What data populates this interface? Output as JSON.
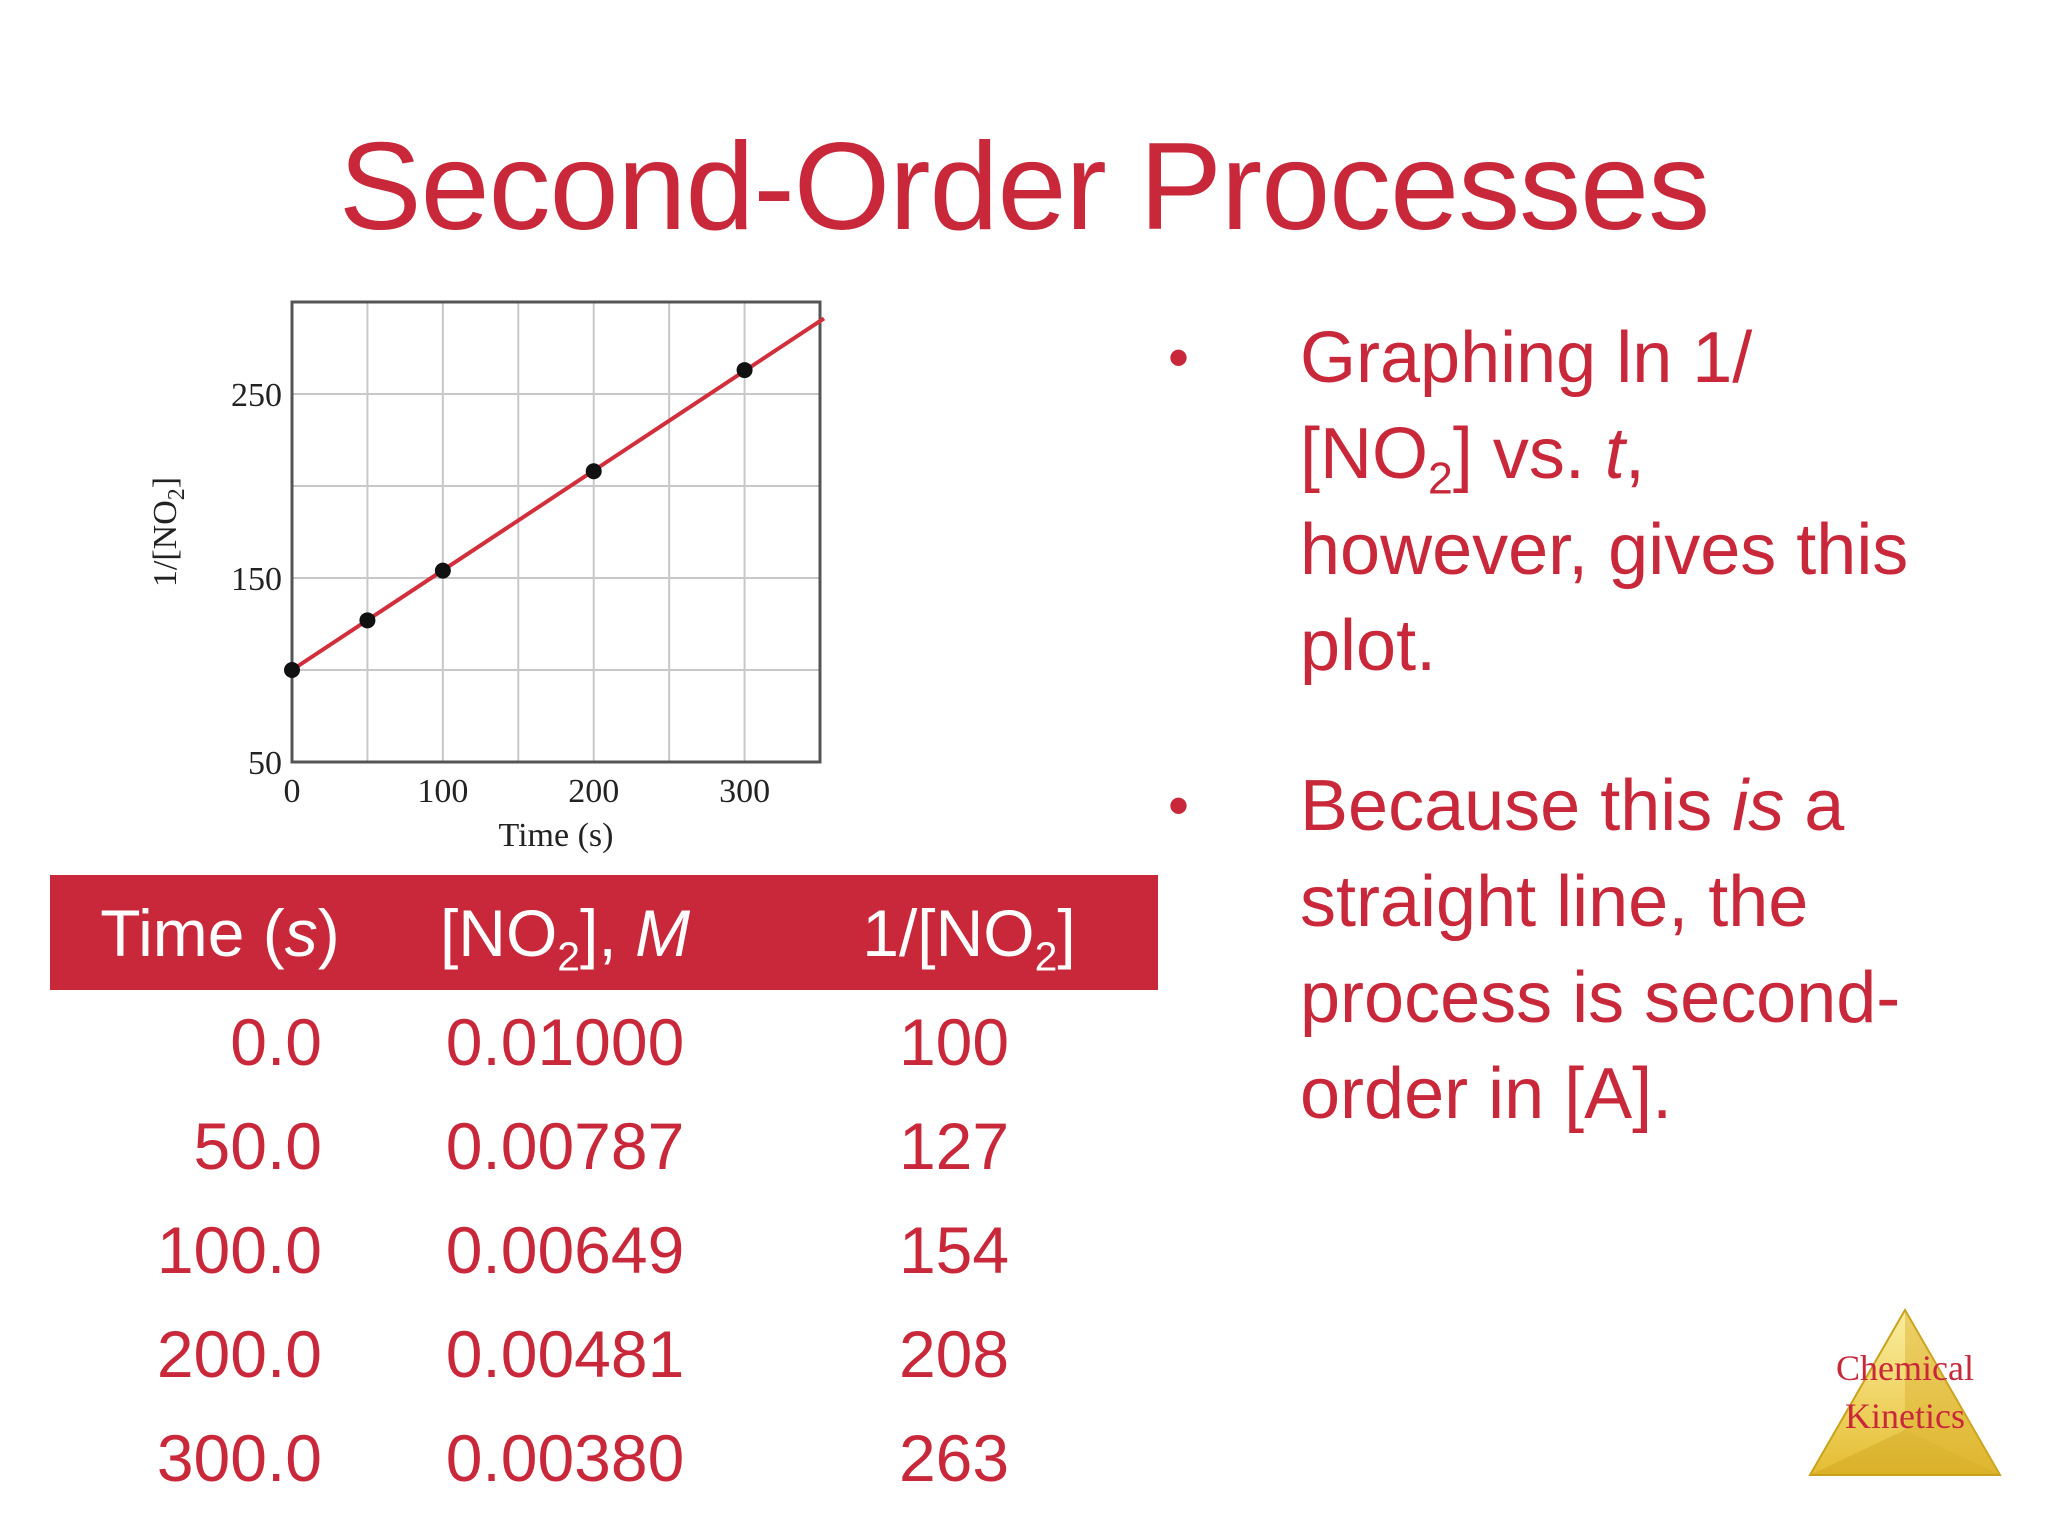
{
  "slide": {
    "title": "Second-Order Processes"
  },
  "chart_data": {
    "type": "scatter",
    "x": [
      0,
      50,
      100,
      200,
      300
    ],
    "y": [
      100,
      127,
      154,
      208,
      263
    ],
    "fit_line": {
      "x": [
        0,
        350
      ],
      "y": [
        100,
        290
      ]
    },
    "xlabel": "Time (s)",
    "ylabel_prefix": "1/[NO",
    "ylabel_sub": "2",
    "ylabel_suffix": "]",
    "xlim": [
      0,
      350
    ],
    "ylim": [
      50,
      300
    ],
    "xticks": [
      0,
      100,
      200,
      300
    ],
    "yticks": [
      50,
      150,
      250
    ],
    "grid": true,
    "colors": {
      "line": "#d12f3c",
      "points": "#111111",
      "grid": "#c8c8c8",
      "frame": "#555555"
    }
  },
  "table": {
    "headers": {
      "time_prefix": "Time (",
      "time_unit": "s",
      "time_suffix": ")",
      "conc_prefix": "[NO",
      "conc_sub": "2",
      "conc_mid": "], ",
      "conc_unit": "M",
      "inv_prefix": "1/[NO",
      "inv_sub": "2",
      "inv_suffix": "]"
    },
    "rows": [
      {
        "time": "0.0",
        "conc": "0.01000",
        "inv": "100"
      },
      {
        "time": "50.0",
        "conc": "0.00787",
        "inv": "127"
      },
      {
        "time": "100.0",
        "conc": "0.00649",
        "inv": "154"
      },
      {
        "time": "200.0",
        "conc": "0.00481",
        "inv": "208"
      },
      {
        "time": "300.0",
        "conc": "0.00380",
        "inv": "263"
      }
    ]
  },
  "bullets": {
    "b1_part1": "Graphing ln 1/",
    "b1_part2": "[NO",
    "b1_sub": "2",
    "b1_part3": "] vs. ",
    "b1_italic": "t",
    "b1_part4": ",",
    "b1_line3": "however, gives this",
    "b1_line4": "plot.",
    "b2_part1": "Because this ",
    "b2_italic": "is",
    "b2_part2": " a",
    "b2_line2": "straight line, the",
    "b2_line3": "process is second-",
    "b2_line4": "order in [A]."
  },
  "logo": {
    "line1": "Chemical",
    "line2": "Kinetics",
    "colors": {
      "light": "#f6e27a",
      "dark": "#c9a21c",
      "text": "#c8283a"
    }
  }
}
